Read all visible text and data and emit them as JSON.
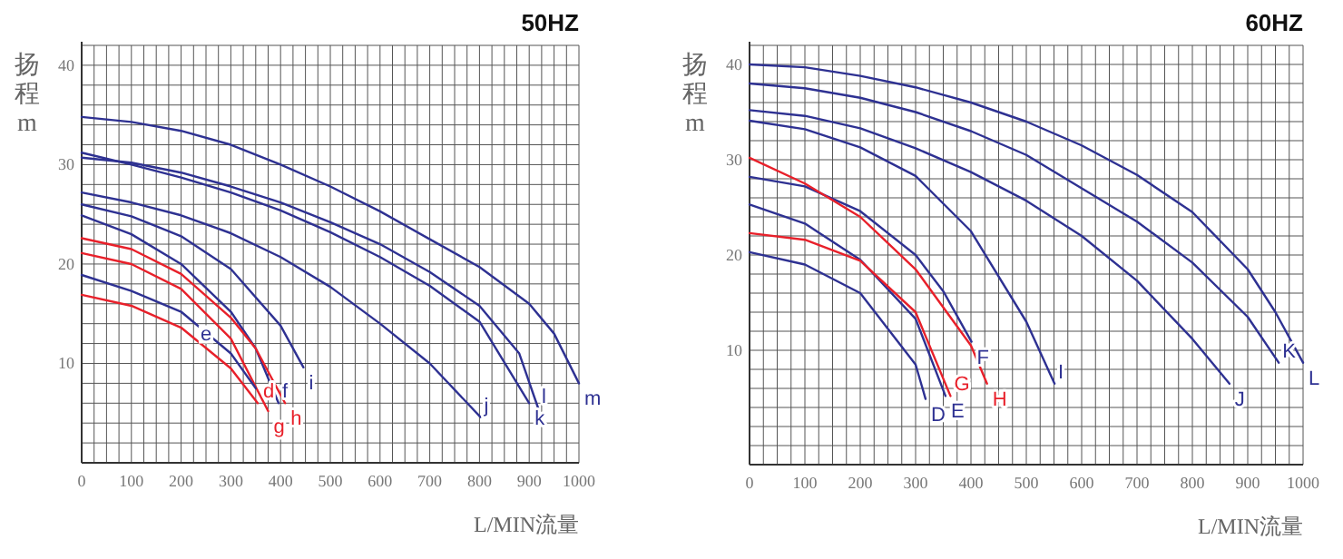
{
  "chart_data": [
    {
      "type": "line",
      "title": "50HZ",
      "xlabel": "L/MIN流量",
      "ylabel": "扬程m",
      "xlim": [
        0,
        1000
      ],
      "ylim": [
        0,
        42
      ],
      "xticks": [
        0,
        100,
        200,
        300,
        400,
        500,
        600,
        700,
        800,
        900,
        1000
      ],
      "yticks": [
        10,
        20,
        30,
        40
      ],
      "grid": true,
      "legend": false,
      "marker": "none",
      "line_style": "solid",
      "series": [
        {
          "name": "m",
          "color": "#2e3192",
          "x": [
            0,
            100,
            200,
            300,
            400,
            500,
            600,
            700,
            800,
            900,
            950,
            1000
          ],
          "values": [
            34.8,
            34.3,
            33.4,
            32,
            30,
            27.8,
            25.3,
            22.5,
            19.7,
            16,
            13,
            8
          ]
        },
        {
          "name": "l",
          "color": "#2e3192",
          "x": [
            0,
            100,
            200,
            300,
            400,
            500,
            600,
            700,
            800,
            880,
            918
          ],
          "values": [
            30.7,
            30.2,
            29.2,
            27.8,
            26.2,
            24.2,
            22,
            19.2,
            15.8,
            11,
            5.5
          ]
        },
        {
          "name": "k",
          "color": "#2e3192",
          "x": [
            0,
            100,
            200,
            300,
            400,
            500,
            600,
            700,
            800,
            900
          ],
          "values": [
            31.2,
            30,
            28.7,
            27.2,
            25.4,
            23.2,
            20.7,
            17.8,
            14.2,
            6
          ]
        },
        {
          "name": "j",
          "color": "#2e3192",
          "x": [
            0,
            100,
            200,
            300,
            400,
            500,
            600,
            700,
            802
          ],
          "values": [
            27.2,
            26.2,
            24.9,
            23.1,
            20.7,
            17.7,
            14,
            10,
            4.6
          ]
        },
        {
          "name": "i",
          "color": "#2e3192",
          "x": [
            0,
            100,
            200,
            300,
            400,
            446
          ],
          "values": [
            26,
            24.8,
            22.8,
            19.5,
            13.8,
            9.6
          ]
        },
        {
          "name": "f",
          "color": "#2e3192",
          "x": [
            0,
            100,
            200,
            300,
            350,
            396
          ],
          "values": [
            24.9,
            23,
            20,
            15.2,
            11.5,
            6
          ]
        },
        {
          "name": "h",
          "color": "#e8202a",
          "x": [
            0,
            100,
            200,
            300,
            350,
            409
          ],
          "values": [
            22.6,
            21.5,
            19,
            14.6,
            11.5,
            6
          ]
        },
        {
          "name": "g",
          "color": "#e8202a",
          "x": [
            0,
            100,
            200,
            300,
            375
          ],
          "values": [
            21.1,
            20,
            17.5,
            12.5,
            5.2
          ]
        },
        {
          "name": "d",
          "color": "#e8202a",
          "x": [
            0,
            100,
            200,
            300,
            354
          ],
          "values": [
            16.9,
            15.8,
            13.6,
            9.5,
            6
          ]
        },
        {
          "name": "e",
          "color": "#2e3192",
          "x": [
            0,
            100,
            200,
            300,
            350
          ],
          "values": [
            18.9,
            17.3,
            15.2,
            11,
            7.5
          ]
        }
      ]
    },
    {
      "type": "line",
      "title": "60HZ",
      "xlabel": "L/MIN流量",
      "ylabel": "扬程m",
      "xlim": [
        0,
        1000
      ],
      "ylim": [
        -2,
        42
      ],
      "xticks": [
        0,
        100,
        200,
        300,
        400,
        500,
        600,
        700,
        800,
        900,
        1000
      ],
      "yticks": [
        10,
        20,
        30,
        40
      ],
      "grid": true,
      "legend": false,
      "marker": "none",
      "line_style": "solid",
      "series": [
        {
          "name": "L",
          "color": "#2e3192",
          "x": [
            0,
            100,
            200,
            300,
            400,
            500,
            600,
            700,
            800,
            900,
            950,
            1000
          ],
          "values": [
            40,
            39.7,
            38.8,
            37.6,
            36,
            34,
            31.5,
            28.4,
            24.5,
            18.5,
            14,
            8.7
          ]
        },
        {
          "name": "K",
          "color": "#2e3192",
          "x": [
            0,
            100,
            200,
            300,
            400,
            500,
            600,
            700,
            800,
            900,
            956
          ],
          "values": [
            38,
            37.5,
            36.5,
            35,
            33,
            30.5,
            27,
            23.5,
            19.2,
            13.5,
            8.7
          ]
        },
        {
          "name": "J",
          "color": "#2e3192",
          "x": [
            0,
            100,
            200,
            300,
            400,
            500,
            600,
            700,
            800,
            867
          ],
          "values": [
            35.2,
            34.6,
            33.3,
            31.2,
            28.7,
            25.7,
            22,
            17.3,
            11.2,
            6.5
          ]
        },
        {
          "name": "I",
          "color": "#2e3192",
          "x": [
            0,
            100,
            200,
            300,
            400,
            500,
            551
          ],
          "values": [
            34.1,
            33.2,
            31.3,
            28.3,
            22.5,
            13,
            6.5
          ]
        },
        {
          "name": "F",
          "color": "#2e3192",
          "x": [
            0,
            100,
            200,
            300,
            350,
            401
          ],
          "values": [
            28.2,
            27.2,
            24.6,
            20,
            16.2,
            10.9
          ]
        },
        {
          "name": "H",
          "color": "#e8202a",
          "x": [
            0,
            100,
            200,
            300,
            400,
            429
          ],
          "values": [
            30.2,
            27.5,
            24,
            18.5,
            10.5,
            6.5
          ]
        },
        {
          "name": "E",
          "color": "#2e3192",
          "x": [
            0,
            100,
            200,
            300,
            354
          ],
          "values": [
            25.3,
            23.3,
            19.5,
            13.3,
            5.2
          ]
        },
        {
          "name": "G",
          "color": "#e8202a",
          "x": [
            0,
            100,
            200,
            300,
            363
          ],
          "values": [
            22.3,
            21.6,
            19.4,
            14,
            5.2
          ]
        },
        {
          "name": "D",
          "color": "#2e3192",
          "x": [
            0,
            100,
            200,
            300,
            318
          ],
          "values": [
            20.3,
            19,
            16,
            8.5,
            4.9
          ]
        }
      ]
    }
  ]
}
